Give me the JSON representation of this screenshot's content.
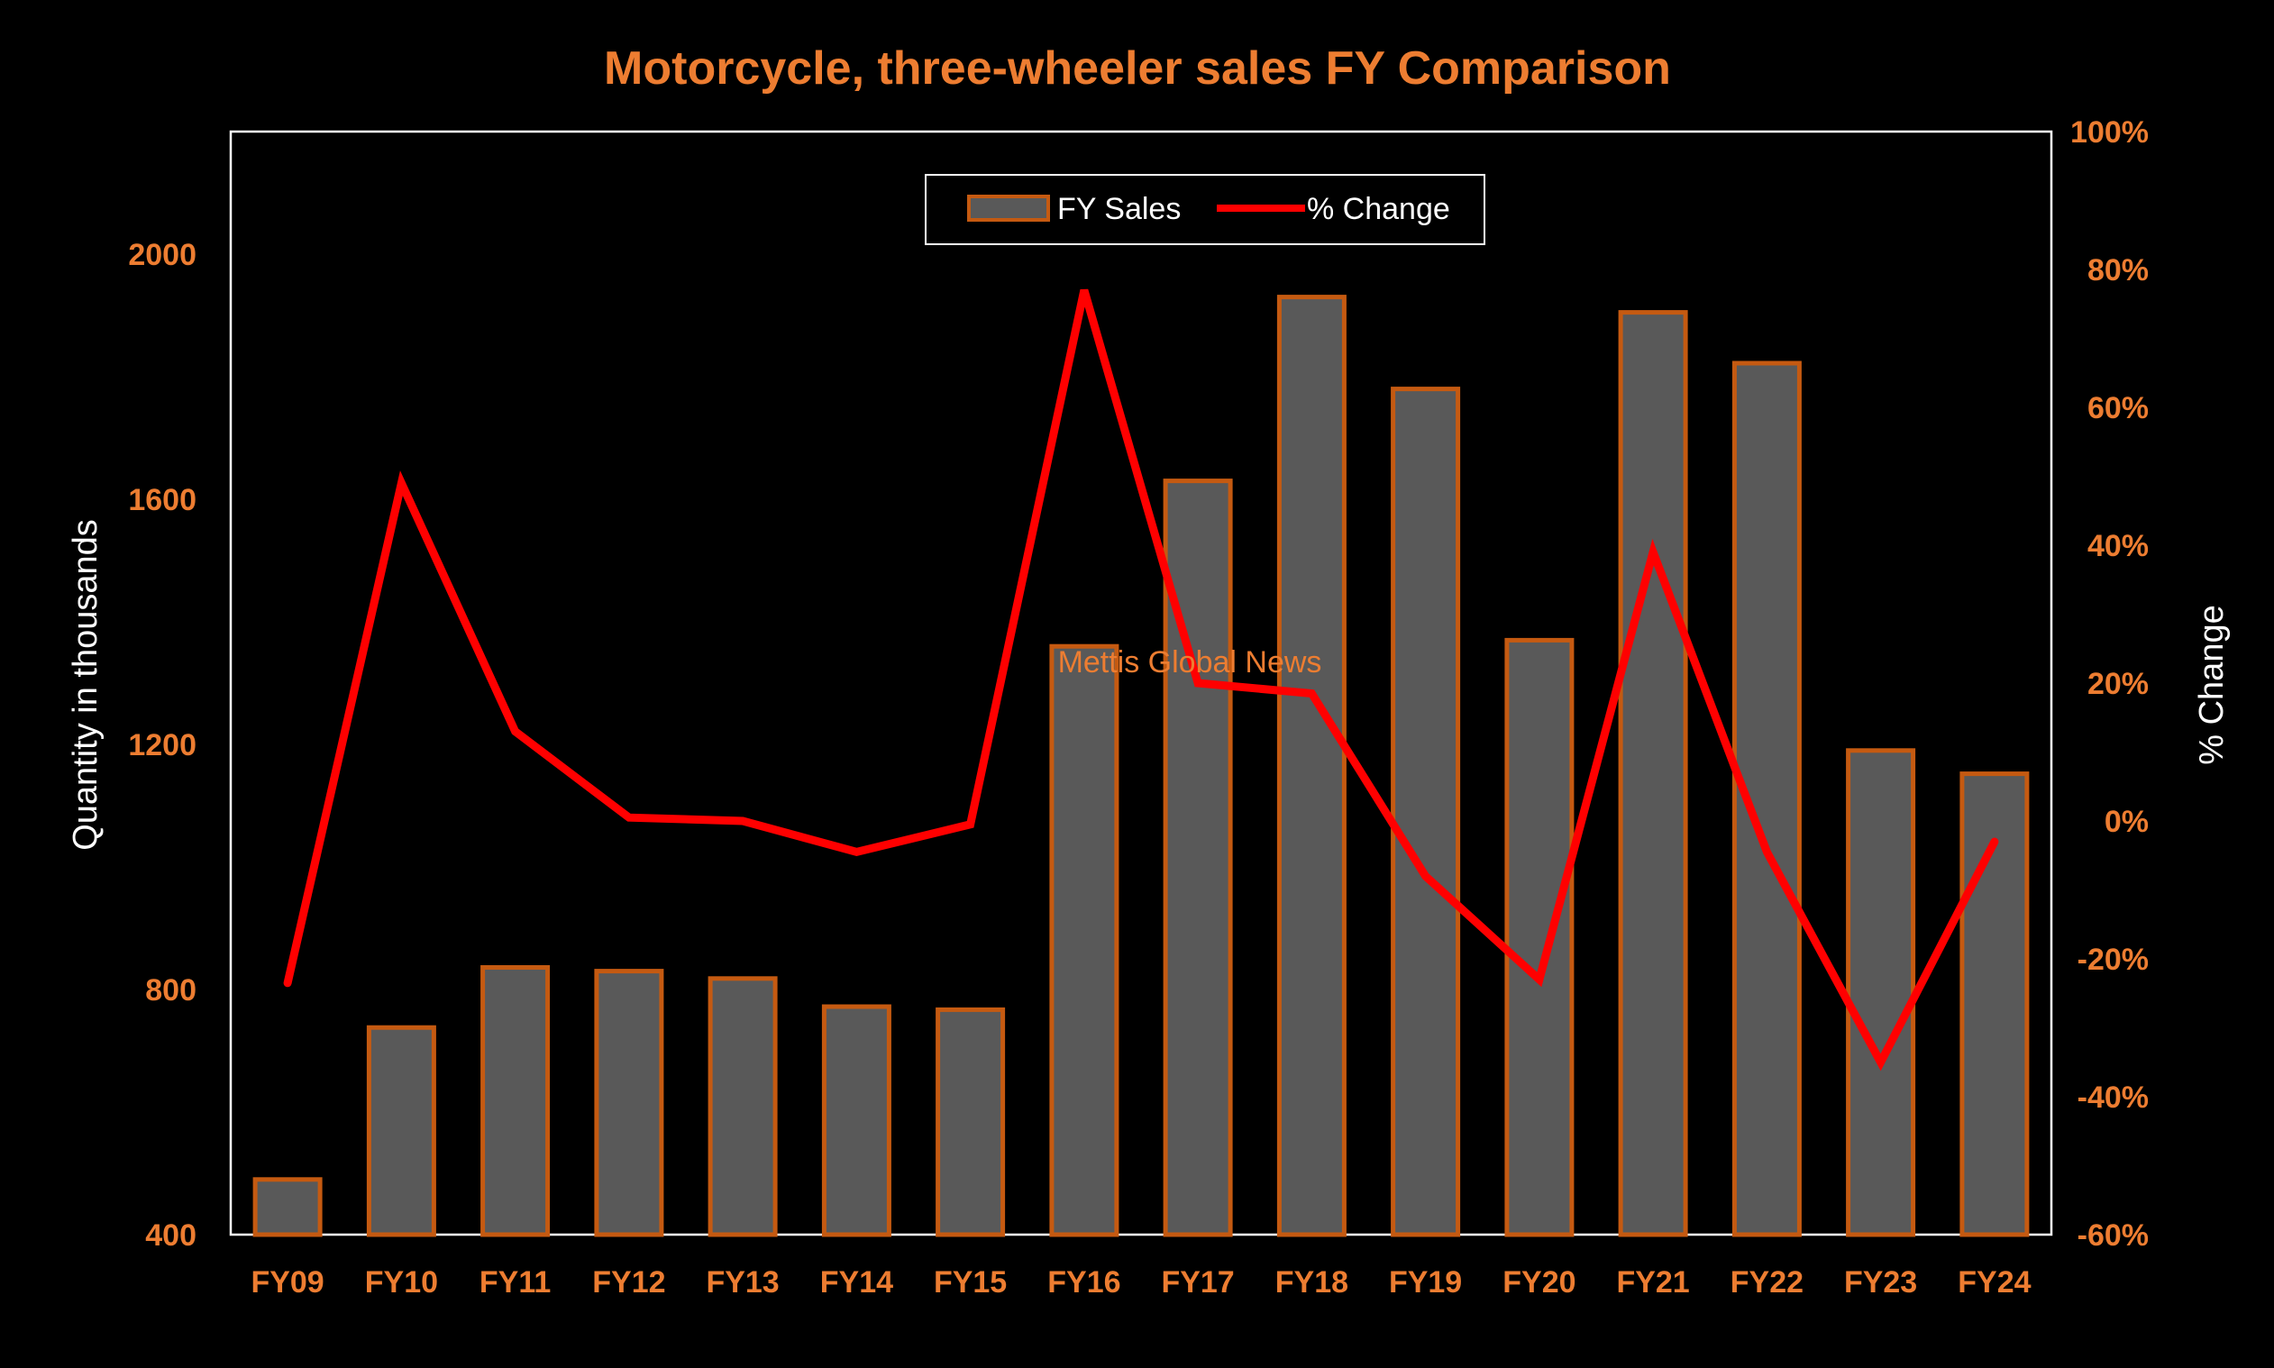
{
  "chart_data": {
    "type": "bar",
    "title": "Motorcycle, three-wheeler sales FY Comparison",
    "categories": [
      "FY09",
      "FY10",
      "FY11",
      "FY12",
      "FY13",
      "FY14",
      "FY15",
      "FY16",
      "FY17",
      "FY18",
      "FY19",
      "FY20",
      "FY21",
      "FY22",
      "FY23",
      "FY24"
    ],
    "series": [
      {
        "name": "FY Sales",
        "type": "bar",
        "axis": "left",
        "values": [
          490,
          738,
          836,
          830,
          818,
          772,
          767,
          1360,
          1630,
          1930,
          1780,
          1370,
          1905,
          1822,
          1190,
          1152
        ]
      },
      {
        "name": "% Change",
        "type": "line",
        "axis": "right",
        "values": [
          -23.5,
          49.0,
          13.0,
          0.5,
          0.0,
          -4.5,
          -0.5,
          77.0,
          20.0,
          18.5,
          -8.0,
          -23.0,
          39.0,
          -4.5,
          -35.0,
          -3.0
        ]
      }
    ],
    "ylabel": "Quantity in  thousands",
    "ylim": [
      400,
      2200
    ],
    "yticks": [
      "400",
      "800",
      "1200",
      "1600",
      "2000"
    ],
    "y2label": "% Change",
    "y2lim": [
      -60,
      100
    ],
    "y2ticks": [
      "-60%",
      "-40%",
      "-20%",
      "0%",
      "20%",
      "40%",
      "60%",
      "80%",
      "100%"
    ],
    "legend": {
      "position": "top-center"
    },
    "watermark": "Mettis Global News",
    "grid": false,
    "colors": {
      "background": "#000000",
      "accent": "#ED7D31",
      "bar_fill": "#595959",
      "bar_stroke": "#C55A11",
      "line": "#FF0000",
      "text": "#FFFFFF"
    }
  }
}
